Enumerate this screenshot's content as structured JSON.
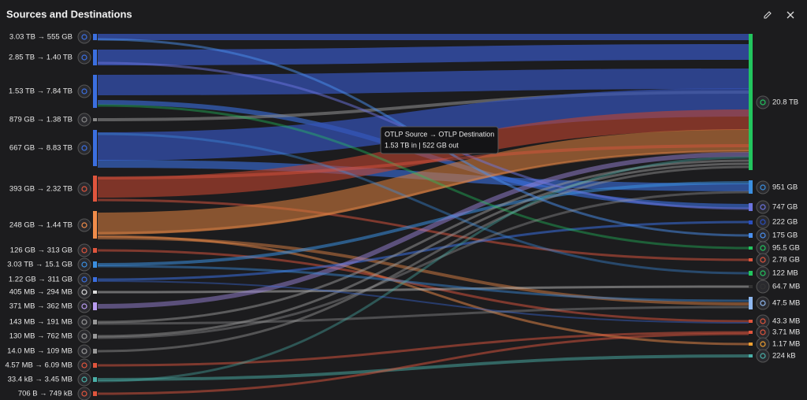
{
  "header": {
    "title": "Sources and Destinations"
  },
  "sources": [
    "3.03 TB → 555 GB",
    "2.85 TB → 1.40 TB",
    "1.53 TB → 7.84 TB",
    "879 GB → 1.38 TB",
    "667 GB → 8.83 TB",
    "393 GB → 2.32 TB",
    "248 GB → 1.44 TB",
    "126 GB → 313 GB",
    "3.03 TB → 15.1 GB",
    "1.22 GB → 311 GB",
    "405 MB → 294 MB",
    "371 MB → 362 MB",
    "143 MB → 191 MB",
    "130 MB → 762 MB",
    "14.0 MB → 109 MB",
    "4.57 MB → 6.09 MB",
    "33.4 kB → 3.45 MB",
    "706 B → 749 kB"
  ],
  "destinations": [
    "20.8 TB",
    "951 GB",
    "747 GB",
    "222 GB",
    "175 GB",
    "95.5 GB",
    "2.78 GB",
    "122 MB",
    "64.7 MB",
    "47.5 MB",
    "43.3 MB",
    "3.71 MB",
    "1.17 MB",
    "224 kB"
  ],
  "tooltip": {
    "title": "OTLP Source → OTLP Destination",
    "detail": "1.53 TB in | 522 GB out"
  }
}
